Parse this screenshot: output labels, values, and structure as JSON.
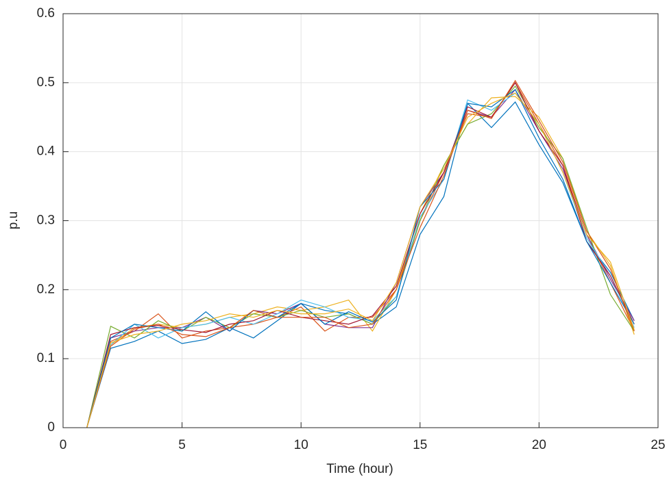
{
  "chart_data": {
    "type": "line",
    "xlabel": "Time (hour)",
    "ylabel": "p.u",
    "x": [
      1,
      2,
      3,
      4,
      5,
      6,
      7,
      8,
      9,
      10,
      11,
      12,
      13,
      14,
      15,
      16,
      17,
      18,
      19,
      20,
      21,
      22,
      23,
      24
    ],
    "series": [
      {
        "color": "#0072BD",
        "values": [
          0,
          0.115,
          0.125,
          0.14,
          0.122,
          0.128,
          0.145,
          0.13,
          0.155,
          0.18,
          0.17,
          0.165,
          0.15,
          0.175,
          0.28,
          0.335,
          0.47,
          0.435,
          0.472,
          0.41,
          0.355,
          0.27,
          0.225,
          0.155
        ]
      },
      {
        "color": "#D95319",
        "values": [
          0,
          0.125,
          0.14,
          0.165,
          0.13,
          0.14,
          0.145,
          0.15,
          0.16,
          0.175,
          0.14,
          0.16,
          0.16,
          0.2,
          0.3,
          0.37,
          0.455,
          0.45,
          0.5,
          0.44,
          0.38,
          0.28,
          0.21,
          0.14
        ]
      },
      {
        "color": "#EDB120",
        "values": [
          0,
          0.12,
          0.145,
          0.15,
          0.145,
          0.15,
          0.16,
          0.165,
          0.175,
          0.17,
          0.175,
          0.185,
          0.14,
          0.2,
          0.31,
          0.38,
          0.44,
          0.478,
          0.48,
          0.45,
          0.39,
          0.285,
          0.235,
          0.135
        ]
      },
      {
        "color": "#7E2F8E",
        "values": [
          0,
          0.13,
          0.14,
          0.145,
          0.145,
          0.16,
          0.14,
          0.17,
          0.165,
          0.18,
          0.15,
          0.145,
          0.145,
          0.21,
          0.32,
          0.37,
          0.46,
          0.45,
          0.49,
          0.43,
          0.375,
          0.28,
          0.215,
          0.155
        ]
      },
      {
        "color": "#77AC30",
        "values": [
          0,
          0.147,
          0.13,
          0.155,
          0.14,
          0.16,
          0.145,
          0.165,
          0.16,
          0.17,
          0.16,
          0.165,
          0.15,
          0.19,
          0.3,
          0.38,
          0.44,
          0.455,
          0.495,
          0.435,
          0.39,
          0.29,
          0.193,
          0.14
        ]
      },
      {
        "color": "#4DBEEE",
        "values": [
          0,
          0.12,
          0.15,
          0.13,
          0.145,
          0.15,
          0.16,
          0.15,
          0.165,
          0.185,
          0.175,
          0.16,
          0.155,
          0.19,
          0.305,
          0.36,
          0.475,
          0.46,
          0.485,
          0.44,
          0.37,
          0.275,
          0.22,
          0.145
        ]
      },
      {
        "color": "#A2142F",
        "values": [
          0,
          0.135,
          0.145,
          0.148,
          0.142,
          0.138,
          0.15,
          0.155,
          0.17,
          0.16,
          0.155,
          0.15,
          0.162,
          0.205,
          0.31,
          0.37,
          0.465,
          0.45,
          0.5,
          0.43,
          0.38,
          0.27,
          0.22,
          0.15
        ]
      },
      {
        "color": "#0072BD",
        "values": [
          0,
          0.13,
          0.15,
          0.145,
          0.14,
          0.168,
          0.14,
          0.17,
          0.16,
          0.18,
          0.15,
          0.168,
          0.153,
          0.185,
          0.32,
          0.36,
          0.47,
          0.465,
          0.49,
          0.42,
          0.36,
          0.27,
          0.21,
          0.15
        ]
      },
      {
        "color": "#D95319",
        "values": [
          0,
          0.118,
          0.143,
          0.15,
          0.135,
          0.132,
          0.145,
          0.17,
          0.16,
          0.16,
          0.16,
          0.145,
          0.15,
          0.2,
          0.29,
          0.365,
          0.46,
          0.448,
          0.503,
          0.445,
          0.385,
          0.285,
          0.23,
          0.14
        ]
      },
      {
        "color": "#EDB120",
        "values": [
          0,
          0.123,
          0.135,
          0.14,
          0.15,
          0.155,
          0.165,
          0.16,
          0.17,
          0.165,
          0.165,
          0.172,
          0.155,
          0.21,
          0.32,
          0.375,
          0.45,
          0.47,
          0.485,
          0.44,
          0.37,
          0.28,
          0.24,
          0.142
        ]
      }
    ],
    "xlim": [
      0,
      25
    ],
    "xticks": [
      0,
      5,
      10,
      15,
      20,
      25
    ],
    "ylim": [
      0,
      0.6
    ],
    "yticks": [
      0,
      0.1,
      0.2,
      0.3,
      0.4,
      0.5,
      0.6
    ],
    "grid": true
  }
}
